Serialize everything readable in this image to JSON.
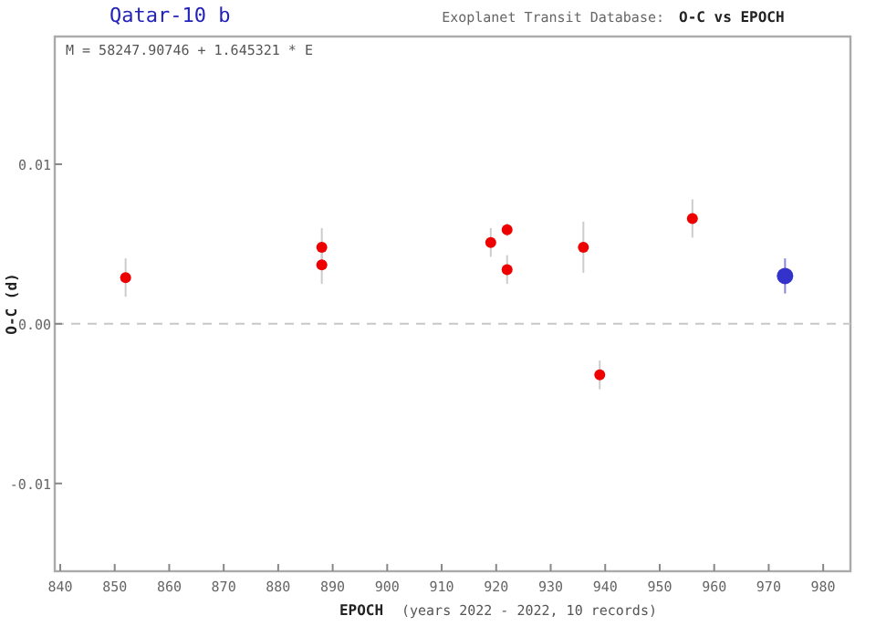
{
  "chart_data": {
    "type": "scatter",
    "title": "Qatar-10 b",
    "subtitle": "Exoplanet Transit Database:",
    "xlabel": "EPOCH",
    "ylabel": "O-C (d)",
    "annotations": [
      "M = 58247.90746 + 1.645321 * E",
      "O-C vs EPOCH",
      "(years 2022 - 2022, 10 records)"
    ],
    "xlim": [
      839,
      985
    ],
    "xticks": [
      840,
      850,
      860,
      870,
      880,
      890,
      900,
      910,
      920,
      930,
      940,
      950,
      960,
      970,
      980
    ],
    "ylim": [
      -0.0155,
      0.018
    ],
    "yticks": [
      {
        "value": -0.01,
        "label": "-0.01"
      },
      {
        "value": 0,
        "label": "0.00"
      },
      {
        "value": 0.01,
        "label": "0.01"
      }
    ],
    "grid": false,
    "marker": "circle",
    "ref_lines": [
      {
        "axis": "y",
        "value": 0,
        "color": "#c8c8c8",
        "line_style": "dashed"
      }
    ],
    "series": [
      {
        "color": "#ee0000",
        "x": [
          852,
          888,
          888,
          919,
          922,
          922,
          936,
          939,
          956
        ],
        "values": [
          0.0029,
          0.0048,
          0.0037,
          0.0051,
          0.0059,
          0.0034,
          0.0048,
          -0.0032,
          0.0066
        ],
        "errors": [
          0.0012,
          0.0012,
          0.0012,
          0.0009,
          0.0004,
          0.0009,
          0.0016,
          0.0009,
          0.0012
        ]
      },
      {
        "color": "#3333cc",
        "x": [
          973
        ],
        "values": [
          0.003
        ],
        "errors": [
          0.0011
        ]
      }
    ]
  }
}
